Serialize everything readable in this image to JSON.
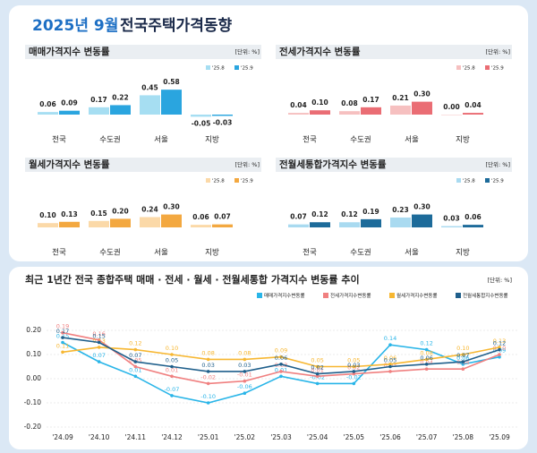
{
  "header": {
    "date": "2025년 9월",
    "title": "전국주택가격동향"
  },
  "chart_data": [
    {
      "type": "bar",
      "title": "매매가격지수 변동률",
      "unit": "[단위: %]",
      "categories": [
        "전국",
        "수도권",
        "서울",
        "지방"
      ],
      "series": [
        {
          "name": "'25.8",
          "color": "#a6def2",
          "values": [
            0.06,
            0.17,
            0.45,
            -0.05
          ],
          "value_labels": [
            "0.06",
            "0.17",
            "0.45",
            "-0.05"
          ]
        },
        {
          "name": "'25.9",
          "color": "#2aa5df",
          "values": [
            0.09,
            0.22,
            0.58,
            -0.03
          ],
          "value_labels": [
            "0.09",
            "0.22",
            "0.58",
            "-0.03"
          ]
        }
      ]
    },
    {
      "type": "bar",
      "title": "전세가격지수 변동률",
      "unit": "[단위: %]",
      "categories": [
        "전국",
        "수도권",
        "서울",
        "지방"
      ],
      "series": [
        {
          "name": "'25.8",
          "color": "#f6c0c0",
          "values": [
            0.04,
            0.08,
            0.21,
            0.0
          ],
          "value_labels": [
            "0.04",
            "0.08",
            "0.21",
            "0.00"
          ]
        },
        {
          "name": "'25.9",
          "color": "#ea6d74",
          "values": [
            0.1,
            0.17,
            0.3,
            0.04
          ],
          "value_labels": [
            "0.10",
            "0.17",
            "0.30",
            "0.04"
          ]
        }
      ]
    },
    {
      "type": "bar",
      "title": "월세가격지수 변동률",
      "unit": "[단위: %]",
      "categories": [
        "전국",
        "수도권",
        "서울",
        "지방"
      ],
      "series": [
        {
          "name": "'25.8",
          "color": "#fbd9a8",
          "values": [
            0.1,
            0.15,
            0.24,
            0.06
          ],
          "value_labels": [
            "0.10",
            "0.15",
            "0.24",
            "0.06"
          ]
        },
        {
          "name": "'25.9",
          "color": "#f3a840",
          "values": [
            0.13,
            0.2,
            0.3,
            0.07
          ],
          "value_labels": [
            "0.13",
            "0.20",
            "0.30",
            "0.07"
          ]
        }
      ]
    },
    {
      "type": "bar",
      "title": "전월세통합가격지수 변동률",
      "unit": "[단위: %]",
      "categories": [
        "전국",
        "수도권",
        "서울",
        "지방"
      ],
      "series": [
        {
          "name": "'25.8",
          "color": "#a9daf0",
          "values": [
            0.07,
            0.12,
            0.23,
            0.03
          ],
          "value_labels": [
            "0.07",
            "0.12",
            "0.23",
            "0.03"
          ]
        },
        {
          "name": "'25.9",
          "color": "#1d6b9a",
          "values": [
            0.12,
            0.19,
            0.3,
            0.06
          ],
          "value_labels": [
            "0.12",
            "0.19",
            "0.30",
            "0.06"
          ]
        }
      ]
    },
    {
      "type": "line",
      "title": "최근 1년간 전국 종합주택 매매 · 전세 · 월세 · 전월세통합 가격지수 변동률 추이",
      "unit": "[단위: %]",
      "categories": [
        "'24.09",
        "'24.10",
        "'24.11",
        "'24.12",
        "'25.01",
        "'25.02",
        "'25.03",
        "'25.04",
        "'25.05",
        "'25.06",
        "'25.07",
        "'25.08",
        "'25.09"
      ],
      "ylim": [
        -0.2,
        0.2
      ],
      "yticks": [
        {
          "value": 0.2,
          "label": "0.20"
        },
        {
          "value": 0.1,
          "label": "0.10"
        },
        {
          "value": 0,
          "label": "0.00"
        },
        {
          "value": -0.1,
          "label": "-0.10"
        },
        {
          "value": -0.2,
          "label": "-0.20"
        }
      ],
      "grid": true,
      "series": [
        {
          "name": "매매가격지수변동률",
          "color": "#29b5e8",
          "values": [
            0.15,
            0.07,
            0.01,
            -0.07,
            -0.1,
            -0.06,
            0.01,
            -0.02,
            -0.02,
            0.14,
            0.12,
            0.06,
            0.09
          ],
          "value_labels": [
            "0.15",
            "0.07",
            "0.01",
            "-0.07",
            "-0.10",
            "-0.06",
            "0.01",
            "-0.02",
            "-0.02",
            "0.14",
            "0.12",
            "0.06",
            "0.09"
          ]
        },
        {
          "name": "전세가격지수변동률",
          "color": "#f08080",
          "values": [
            0.19,
            0.16,
            0.05,
            0.01,
            -0.02,
            -0.01,
            0.03,
            0.01,
            0.02,
            0.03,
            0.04,
            0.04,
            0.1
          ],
          "value_labels": [
            "0.19",
            "0.16",
            "0.05",
            "0.01",
            "-0.02",
            "-0.01",
            "0.03",
            "0.01",
            "0.02",
            "0.03",
            "0.04",
            "0.04",
            "0.10"
          ]
        },
        {
          "name": "월세가격지수변동률",
          "color": "#f7b731",
          "values": [
            0.11,
            0.13,
            0.12,
            0.1,
            0.08,
            0.08,
            0.09,
            0.05,
            0.05,
            0.06,
            0.08,
            0.1,
            0.13
          ],
          "value_labels": [
            "0.11",
            "0.13",
            "0.12",
            "0.10",
            "0.08",
            "0.08",
            "0.09",
            "0.05",
            "0.05",
            "0.06",
            "0.08",
            "0.10",
            "0.13"
          ]
        },
        {
          "name": "전월세통합지수변동률",
          "color": "#1f5f8b",
          "values": [
            0.17,
            0.15,
            0.07,
            0.05,
            0.03,
            0.03,
            0.06,
            0.02,
            0.03,
            0.05,
            0.06,
            0.07,
            0.12
          ],
          "value_labels": [
            "0.17",
            "0.15",
            "0.07",
            "0.05",
            "0.03",
            "0.03",
            "0.06",
            "0.02",
            "0.03",
            "0.05",
            "0.06",
            "0.07",
            "0.12"
          ]
        }
      ]
    }
  ]
}
